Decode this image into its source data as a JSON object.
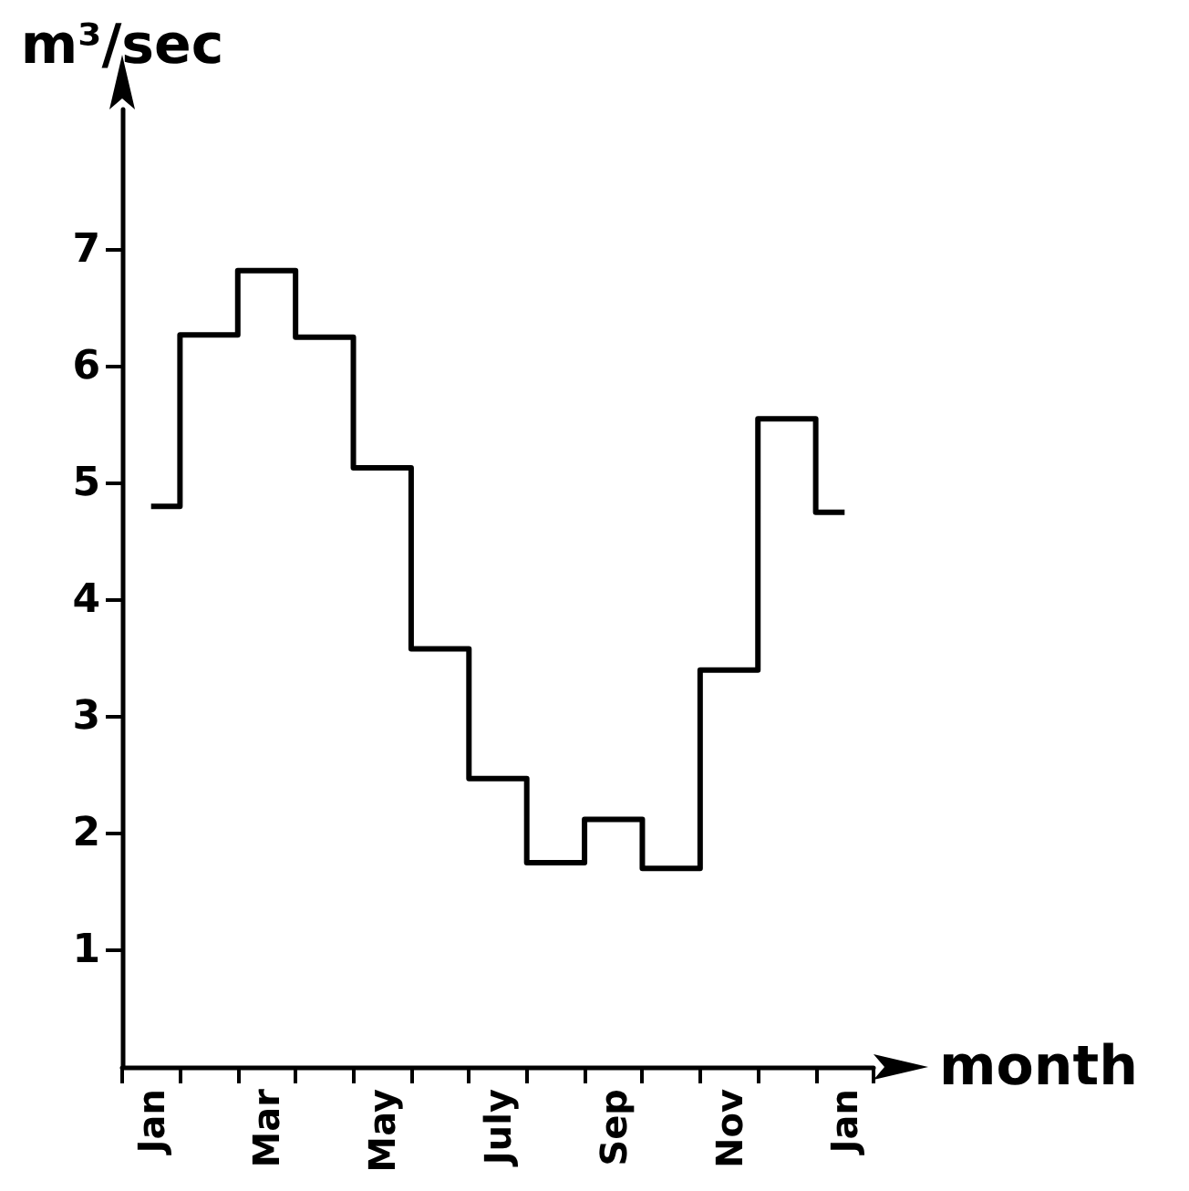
{
  "chart_data": {
    "type": "step",
    "xlabel": "month",
    "ylabel": "m³/sec",
    "categories": [
      "Jan",
      null,
      "Mar",
      null,
      "May",
      null,
      "July",
      null,
      "Sep",
      null,
      "Nov",
      null,
      "Jan"
    ],
    "values": [
      4.8,
      6.27,
      6.82,
      6.25,
      5.13,
      3.58,
      2.47,
      1.75,
      2.12,
      1.7,
      3.4,
      5.55,
      4.75
    ],
    "color": "#000000",
    "ylim": [
      0,
      8.2
    ],
    "yticks": [
      1,
      2,
      3,
      4,
      5,
      6,
      7
    ],
    "grid": false,
    "marker": "none",
    "line_style": "solid"
  }
}
